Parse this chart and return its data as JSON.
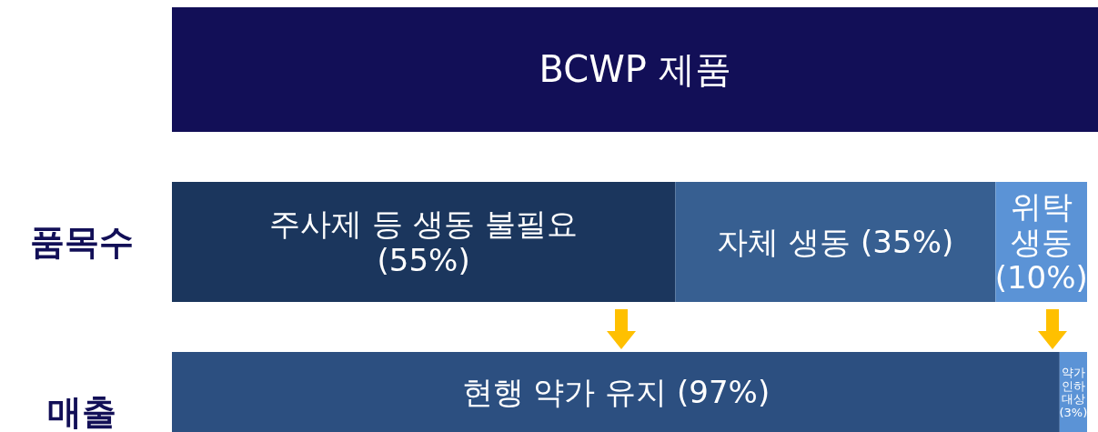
{
  "chart_data": {
    "type": "bar",
    "orientation": "horizontal",
    "stacked": true,
    "title": "BCWP 제품",
    "categories": [
      "품목수",
      "매출"
    ],
    "series": [
      {
        "name": "주사제 등 생동 불필요",
        "color": "#1b365d",
        "values": [
          55,
          null
        ],
        "value_labels": [
          "(55%)",
          null
        ]
      },
      {
        "name": "자체 생동",
        "color": "#375f91",
        "values": [
          35,
          null
        ],
        "value_labels": [
          "(35%)",
          null
        ]
      },
      {
        "name": "위탁 생동",
        "color": "#5b93d6",
        "values": [
          10,
          null
        ],
        "value_labels": [
          "(10%)",
          null
        ]
      },
      {
        "name": "현행 약가 유지",
        "color": "#2c4f80",
        "values": [
          null,
          97
        ],
        "value_labels": [
          null,
          "(97%)"
        ]
      },
      {
        "name": "약가 인하 대상",
        "color": "#5b93d6",
        "values": [
          null,
          3
        ],
        "value_labels": [
          null,
          "(3%)"
        ]
      }
    ],
    "legend": false,
    "grid": false
  }
}
